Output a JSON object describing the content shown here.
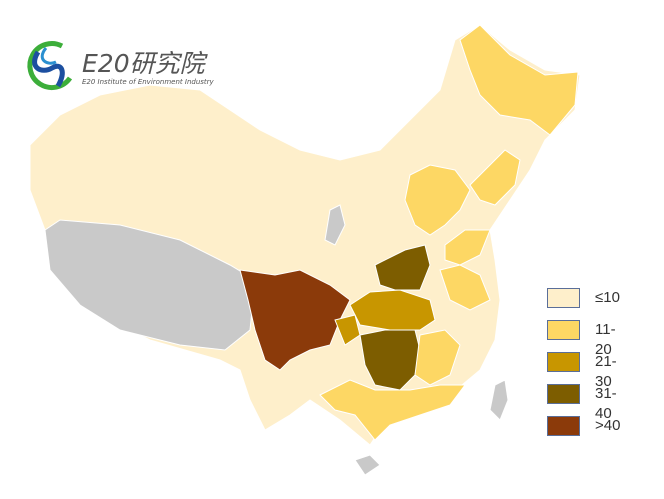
{
  "logo": {
    "title": "E20研究院",
    "subtitle": "E20 Institute of Environment Industry",
    "colors": {
      "green": "#3cae3a",
      "blue": "#1c4fa0"
    }
  },
  "legend": {
    "items": [
      {
        "label": "≤10",
        "color": "#FEEFCB"
      },
      {
        "label": "11-20",
        "color": "#FDD764"
      },
      {
        "label": "21-30",
        "color": "#C89600"
      },
      {
        "label": "31-40",
        "color": "#7D5D00"
      },
      {
        "label": ">40",
        "color": "#8B3A0A"
      }
    ],
    "no_data_color": "#C9C9C9"
  }
}
